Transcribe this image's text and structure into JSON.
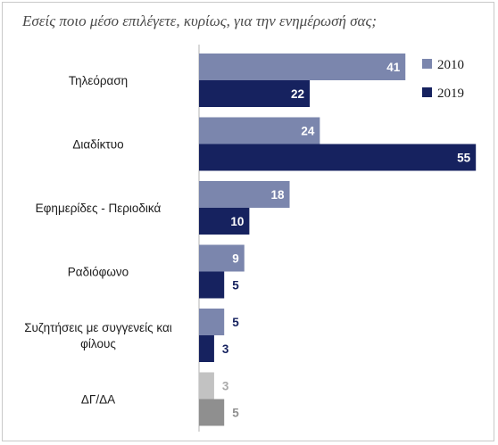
{
  "chart_data": {
    "type": "bar",
    "orientation": "horizontal",
    "title": "Εσείς ποιο μέσο επιλέγετε, κυρίως, για την ενημέρωσή σας;",
    "categories": [
      [
        "Τηλεόραση"
      ],
      [
        "Διαδίκτυο"
      ],
      [
        "Εφημερίδες - Περιοδικά"
      ],
      [
        "Ραδιόφωνο"
      ],
      [
        "Συζητήσεις με συγγενείς και",
        "φίλους"
      ],
      [
        "ΔΓ/ΔΑ"
      ]
    ],
    "series": [
      {
        "name": "2010",
        "values": [
          41,
          24,
          18,
          9,
          5,
          3
        ]
      },
      {
        "name": "2019",
        "values": [
          22,
          55,
          10,
          5,
          3,
          5
        ]
      }
    ],
    "xlim": [
      0,
      55
    ],
    "grid": false,
    "legend_position": "top-right",
    "colors": {
      "2010": "#7b86ad",
      "2019": "#16225f",
      "dk_na_2010": "#c2c2c2",
      "dk_na_2019": "#8f8f8f",
      "label_inside": "#ffffff",
      "label_outside": "#16225f",
      "label_dk_2010": "#a9a9a9",
      "label_dk_2019": "#8f8f8f"
    }
  }
}
